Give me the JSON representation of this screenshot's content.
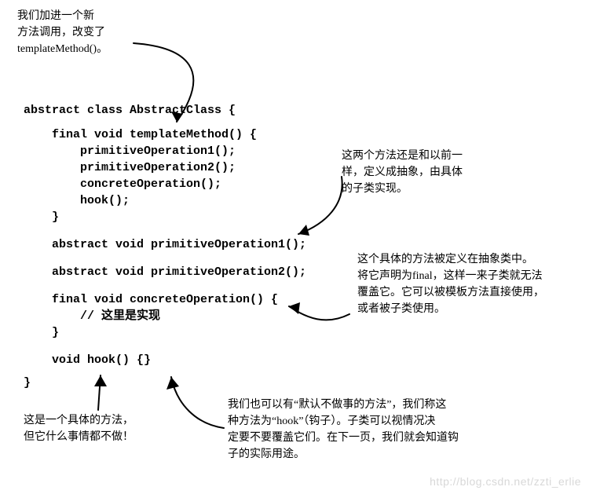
{
  "annotations": {
    "top": "我们加进一个新\n方法调用，改变了\ntemplateMethod()。",
    "right1": "这两个方法还是和以前一\n样，定义成抽象，由具体\n的子类实现。",
    "right2": "这个具体的方法被定义在抽象类中。\n将它声明为final，这样一来子类就无法\n覆盖它。它可以被模板方法直接使用，\n或者被子类使用。",
    "bottomLeft": "这是一个具体的方法，\n但它什么事情都不做！",
    "bottomRight": "我们也可以有“默认不做事的方法”，我们称这\n种方法为“hook”（钩子）。子类可以视情况决\n定要不要覆盖它们。在下一页，我们就会知道钩\n子的实际用途。"
  },
  "code": {
    "l1": "abstract class AbstractClass {",
    "l2": "    final void templateMethod() {",
    "l3": "        primitiveOperation1();",
    "l4": "        primitiveOperation2();",
    "l5": "        concreteOperation();",
    "l6": "        hook();",
    "l7": "    }",
    "l8": "    abstract void primitiveOperation1();",
    "l9": "    abstract void primitiveOperation2();",
    "l10": "    final void concreteOperation() {",
    "l11": "        // 这里是实现",
    "l12": "    }",
    "l13": "    void hook() {}",
    "l14": "}"
  },
  "watermark": "http://blog.csdn.net/zzti_erlie",
  "colors": {
    "text": "#000000",
    "bg": "#ffffff",
    "watermark": "#d8d8d8"
  }
}
